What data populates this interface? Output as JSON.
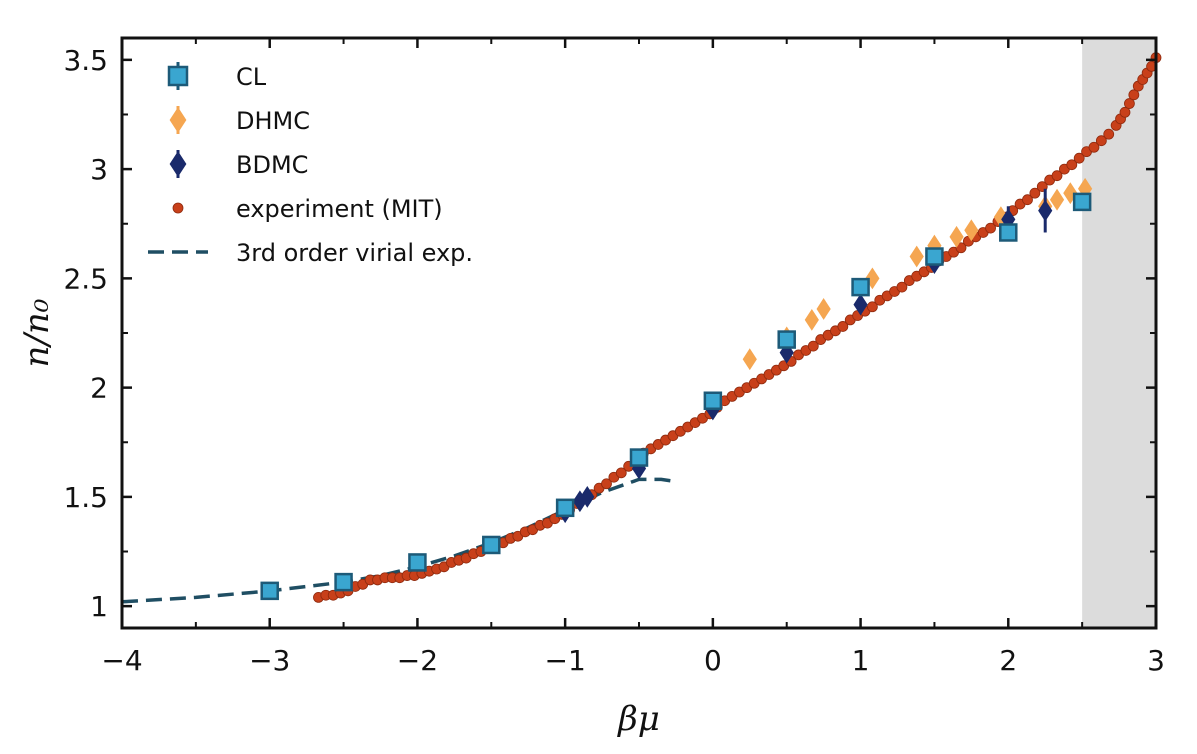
{
  "chart_data": {
    "type": "scatter",
    "title": "",
    "xlabel": "βμ",
    "ylabel": "n/n₀",
    "xlim": [
      -4,
      3
    ],
    "ylim": [
      0.9,
      3.6
    ],
    "x_ticks": [
      -4,
      -3,
      -2,
      -1,
      0,
      1,
      2,
      3
    ],
    "y_ticks": [
      1,
      1.5,
      2,
      2.5,
      3,
      3.5
    ],
    "x_tick_labels": [
      "−4",
      "−3",
      "−2",
      "−1",
      "0",
      "1",
      "2",
      "3"
    ],
    "y_tick_labels": [
      "1",
      "1.5",
      "2",
      "2.5",
      "3",
      "3.5"
    ],
    "grid": false,
    "legend_position": "top-left",
    "shaded_region": {
      "x": [
        2.5,
        3
      ],
      "color": "#dcdcdc"
    },
    "series": [
      {
        "name": "CL",
        "marker": "square",
        "color": "#3aa6d0",
        "edge_color": "#1d5a78",
        "x": [
          -3,
          -2.5,
          -2,
          -1.5,
          -1,
          -0.5,
          0,
          0.5,
          1,
          1.5,
          2,
          2.5
        ],
        "y": [
          1.07,
          1.11,
          1.2,
          1.28,
          1.45,
          1.68,
          1.94,
          2.22,
          2.46,
          2.6,
          2.71,
          2.85
        ],
        "yerr": [
          0.01,
          0.01,
          0.01,
          0.01,
          0.02,
          0.02,
          0.02,
          0.02,
          0.03,
          0.03,
          0.04,
          0.02
        ]
      },
      {
        "name": "DHMC",
        "marker": "diamond",
        "color": "#f5a651",
        "x": [
          0.25,
          0.5,
          0.67,
          0.75,
          1.08,
          1.38,
          1.5,
          1.65,
          1.75,
          1.95,
          2.25,
          2.33,
          2.42,
          2.52
        ],
        "y": [
          2.13,
          2.23,
          2.31,
          2.36,
          2.5,
          2.6,
          2.65,
          2.69,
          2.72,
          2.78,
          2.83,
          2.86,
          2.89,
          2.91
        ],
        "yerr": [
          0.03,
          0.03,
          0.03,
          0.04,
          0.04,
          0.03,
          0.03,
          0.03,
          0.03,
          0.03,
          0.03,
          0.03,
          0.03,
          0.03
        ]
      },
      {
        "name": "BDMC",
        "marker": "diamond",
        "color": "#1a2a6b",
        "x": [
          -1,
          -0.9,
          -0.85,
          -0.5,
          0,
          0.5,
          1,
          1.5,
          2,
          2.25
        ],
        "y": [
          1.43,
          1.48,
          1.5,
          1.63,
          1.9,
          2.16,
          2.38,
          2.57,
          2.77,
          2.81
        ],
        "yerr": [
          0.02,
          0.02,
          0.02,
          0.02,
          0.02,
          0.03,
          0.03,
          0.04,
          0.06,
          0.1
        ]
      },
      {
        "name": "experiment (MIT)",
        "marker": "circle",
        "color": "#c8401a",
        "x": [
          -2.67,
          -2.62,
          -2.57,
          -2.52,
          -2.47,
          -2.42,
          -2.37,
          -2.32,
          -2.27,
          -2.22,
          -2.17,
          -2.12,
          -2.07,
          -2.02,
          -1.97,
          -1.92,
          -1.87,
          -1.82,
          -1.77,
          -1.72,
          -1.67,
          -1.62,
          -1.57,
          -1.52,
          -1.47,
          -1.42,
          -1.37,
          -1.32,
          -1.27,
          -1.22,
          -1.17,
          -1.12,
          -1.07,
          -1.02,
          -0.97,
          -0.92,
          -0.87,
          -0.82,
          -0.77,
          -0.72,
          -0.67,
          -0.62,
          -0.57,
          -0.52,
          -0.47,
          -0.42,
          -0.37,
          -0.32,
          -0.27,
          -0.22,
          -0.17,
          -0.12,
          -0.07,
          -0.02,
          0.03,
          0.08,
          0.13,
          0.18,
          0.23,
          0.28,
          0.33,
          0.38,
          0.43,
          0.48,
          0.53,
          0.58,
          0.63,
          0.68,
          0.73,
          0.78,
          0.83,
          0.88,
          0.93,
          0.98,
          1.03,
          1.08,
          1.13,
          1.18,
          1.23,
          1.28,
          1.33,
          1.38,
          1.43,
          1.48,
          1.53,
          1.58,
          1.63,
          1.68,
          1.73,
          1.78,
          1.83,
          1.88,
          1.93,
          1.98,
          2.03,
          2.08,
          2.13,
          2.18,
          2.23,
          2.28,
          2.33,
          2.38,
          2.43,
          2.48,
          2.53,
          2.58,
          2.63,
          2.68,
          2.73,
          2.76,
          2.79,
          2.82,
          2.85,
          2.88,
          2.91,
          2.94,
          2.97,
          3.0
        ],
        "y": [
          1.04,
          1.05,
          1.05,
          1.06,
          1.07,
          1.09,
          1.1,
          1.12,
          1.12,
          1.13,
          1.13,
          1.13,
          1.14,
          1.14,
          1.15,
          1.16,
          1.17,
          1.18,
          1.2,
          1.21,
          1.22,
          1.24,
          1.25,
          1.27,
          1.28,
          1.29,
          1.31,
          1.32,
          1.34,
          1.35,
          1.37,
          1.38,
          1.4,
          1.42,
          1.44,
          1.47,
          1.49,
          1.51,
          1.54,
          1.56,
          1.59,
          1.61,
          1.64,
          1.67,
          1.7,
          1.72,
          1.74,
          1.76,
          1.78,
          1.8,
          1.82,
          1.84,
          1.86,
          1.88,
          1.91,
          1.94,
          1.96,
          1.98,
          2.0,
          2.02,
          2.04,
          2.06,
          2.08,
          2.1,
          2.12,
          2.15,
          2.17,
          2.19,
          2.22,
          2.24,
          2.26,
          2.28,
          2.31,
          2.33,
          2.35,
          2.37,
          2.4,
          2.42,
          2.44,
          2.46,
          2.49,
          2.51,
          2.53,
          2.55,
          2.58,
          2.6,
          2.62,
          2.64,
          2.67,
          2.69,
          2.71,
          2.73,
          2.76,
          2.78,
          2.81,
          2.84,
          2.86,
          2.89,
          2.92,
          2.95,
          2.97,
          3.0,
          3.02,
          3.05,
          3.08,
          3.1,
          3.13,
          3.16,
          3.2,
          3.23,
          3.26,
          3.3,
          3.34,
          3.38,
          3.41,
          3.44,
          3.47,
          3.51
        ]
      },
      {
        "name": "3rd order virial exp.",
        "marker": "dashed-line",
        "color": "#1f4e63",
        "x": [
          -4,
          -3.5,
          -3,
          -2.5,
          -2.25,
          -2,
          -1.75,
          -1.5,
          -1.25,
          -1,
          -0.75,
          -0.5,
          -0.35,
          -0.25
        ],
        "y": [
          1.02,
          1.04,
          1.07,
          1.11,
          1.14,
          1.18,
          1.23,
          1.29,
          1.36,
          1.44,
          1.52,
          1.58,
          1.58,
          1.57
        ]
      }
    ]
  }
}
